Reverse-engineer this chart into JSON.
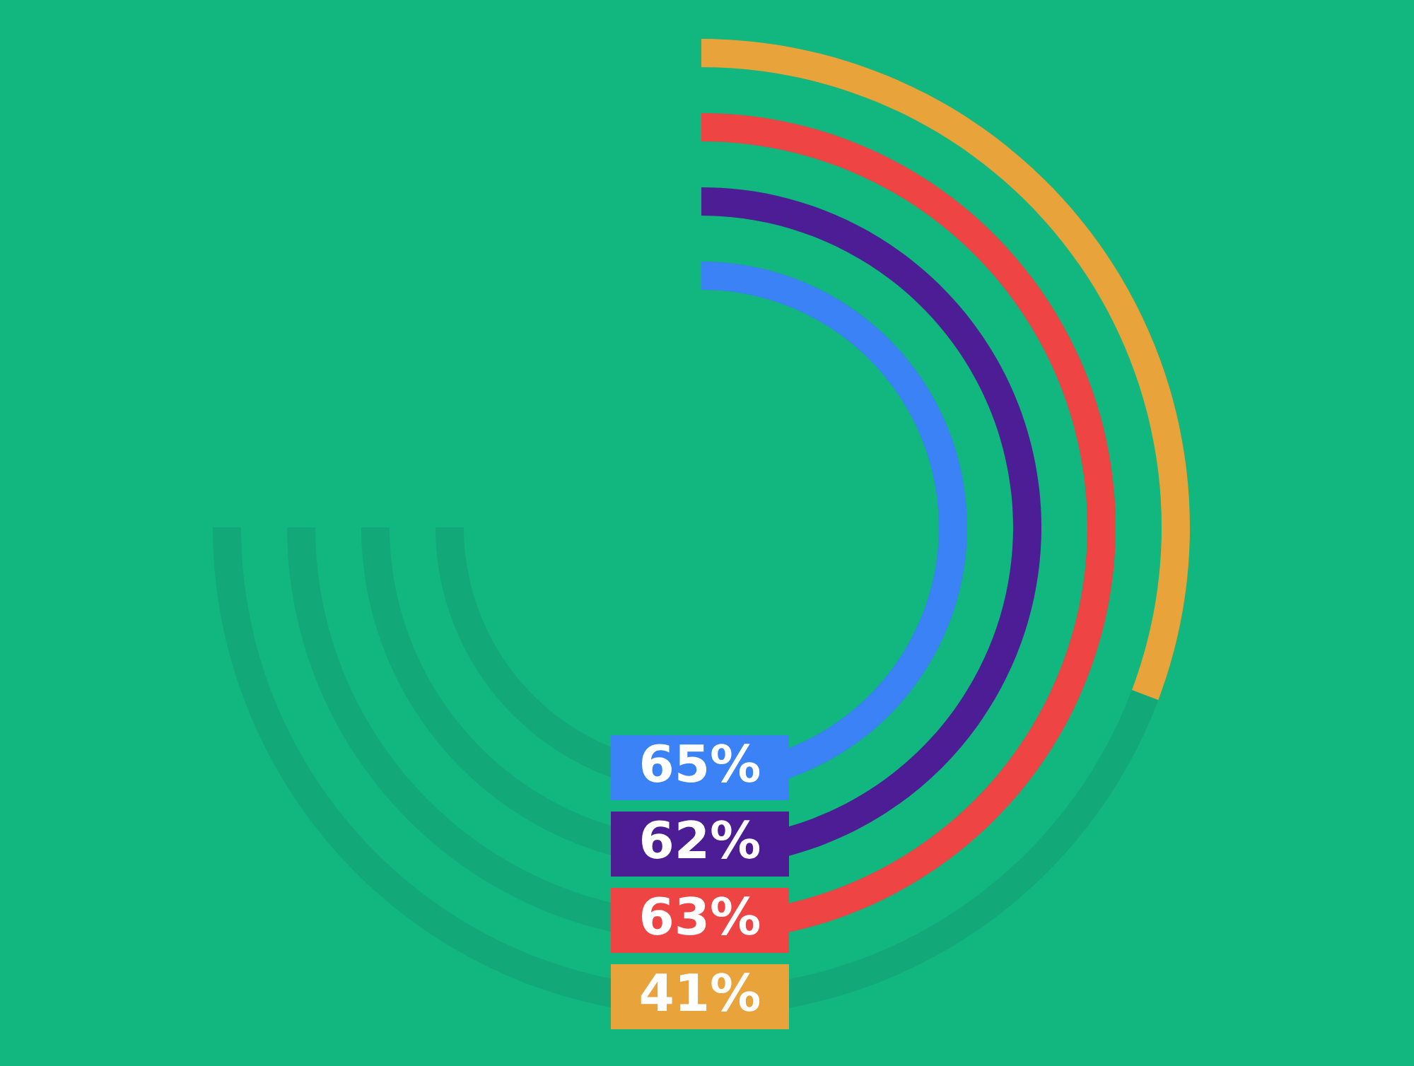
{
  "chart_data": {
    "type": "other",
    "categories": [
      null,
      null,
      null,
      null
    ],
    "values": [
      65,
      62,
      63,
      41
    ],
    "colors": [
      "#3b82f6",
      "#4c1d95",
      "#ef4444",
      "#e8a43a"
    ],
    "value_labels": [
      "65%",
      "62%",
      "63%",
      "41%"
    ]
  }
}
